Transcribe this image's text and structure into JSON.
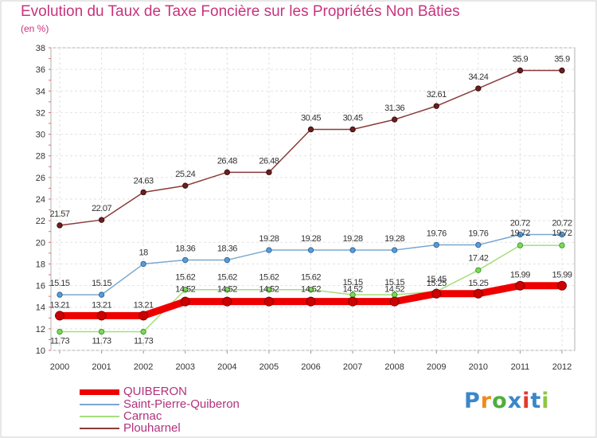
{
  "header": {
    "title": "Evolution du Taux de Taxe Foncière sur les Propriétés Non Bâties",
    "subtitle": "(en %)"
  },
  "logo": {
    "text": "Proxiti",
    "colors": [
      "#3a87c8",
      "#f08a1c",
      "#4fae3b",
      "#3a87c8",
      "#e23a2e",
      "#3a87c8",
      "#8fc640"
    ]
  },
  "chart_data": {
    "type": "line",
    "title": "Evolution du Taux de Taxe Foncière sur les Propriétés Non Bâties",
    "ylabel": "(en %)",
    "xlabel": "",
    "categories": [
      "2000",
      "2001",
      "2002",
      "2003",
      "2004",
      "2005",
      "2006",
      "2007",
      "2008",
      "2009",
      "2010",
      "2011",
      "2012"
    ],
    "ylim": [
      10,
      38
    ],
    "yticks": [
      10,
      12,
      14,
      16,
      18,
      20,
      22,
      24,
      26,
      28,
      30,
      32,
      34,
      36,
      38
    ],
    "grid": true,
    "legend_position": "bottom-left",
    "series": [
      {
        "name": "QUIBERON",
        "color": "#ee0000",
        "values": [
          13.21,
          13.21,
          13.21,
          14.52,
          14.52,
          14.52,
          14.52,
          14.52,
          14.52,
          15.25,
          15.25,
          15.99,
          15.99
        ],
        "labels": [
          "13.21",
          "13.21",
          "13.21",
          "14.52",
          "14.52",
          "14.52",
          "14.52",
          "14.52",
          "14.52",
          "15.25",
          "15.25",
          "15.99",
          "15.99"
        ]
      },
      {
        "name": "Saint-Pierre-Quiberon",
        "color": "#7ba7ce",
        "values": [
          15.15,
          15.15,
          18,
          18.36,
          18.36,
          19.28,
          19.28,
          19.28,
          19.28,
          19.76,
          19.76,
          20.72,
          20.72
        ],
        "labels": [
          "15.15",
          "15.15",
          "18",
          "18.36",
          "18.36",
          "19.28",
          "19.28",
          "19.28",
          "19.28",
          "19.76",
          "19.76",
          "20.72",
          "20.72"
        ]
      },
      {
        "name": "Carnac",
        "color": "#a5de7c",
        "values": [
          11.73,
          11.73,
          11.73,
          15.62,
          15.62,
          15.62,
          15.62,
          15.15,
          15.15,
          15.45,
          17.42,
          19.72,
          19.72
        ],
        "labels": [
          "11.73",
          "11.73",
          "11.73",
          "15.62",
          "15.62",
          "15.62",
          "15.62",
          "15.15",
          "15.15",
          "15.45",
          "17.42",
          "19.72",
          "19.72"
        ]
      },
      {
        "name": "Plouharnel",
        "color": "#8b3a3a",
        "values": [
          21.57,
          22.07,
          24.63,
          25.24,
          26.48,
          26.48,
          30.45,
          30.45,
          31.36,
          32.61,
          34.24,
          35.9,
          35.9
        ],
        "labels": [
          "21.57",
          "22.07",
          "24.63",
          "25.24",
          "26.48",
          "26.48",
          "30.45",
          "30.45",
          "31.36",
          "32.61",
          "34.24",
          "35.9",
          "35.9"
        ]
      }
    ]
  }
}
